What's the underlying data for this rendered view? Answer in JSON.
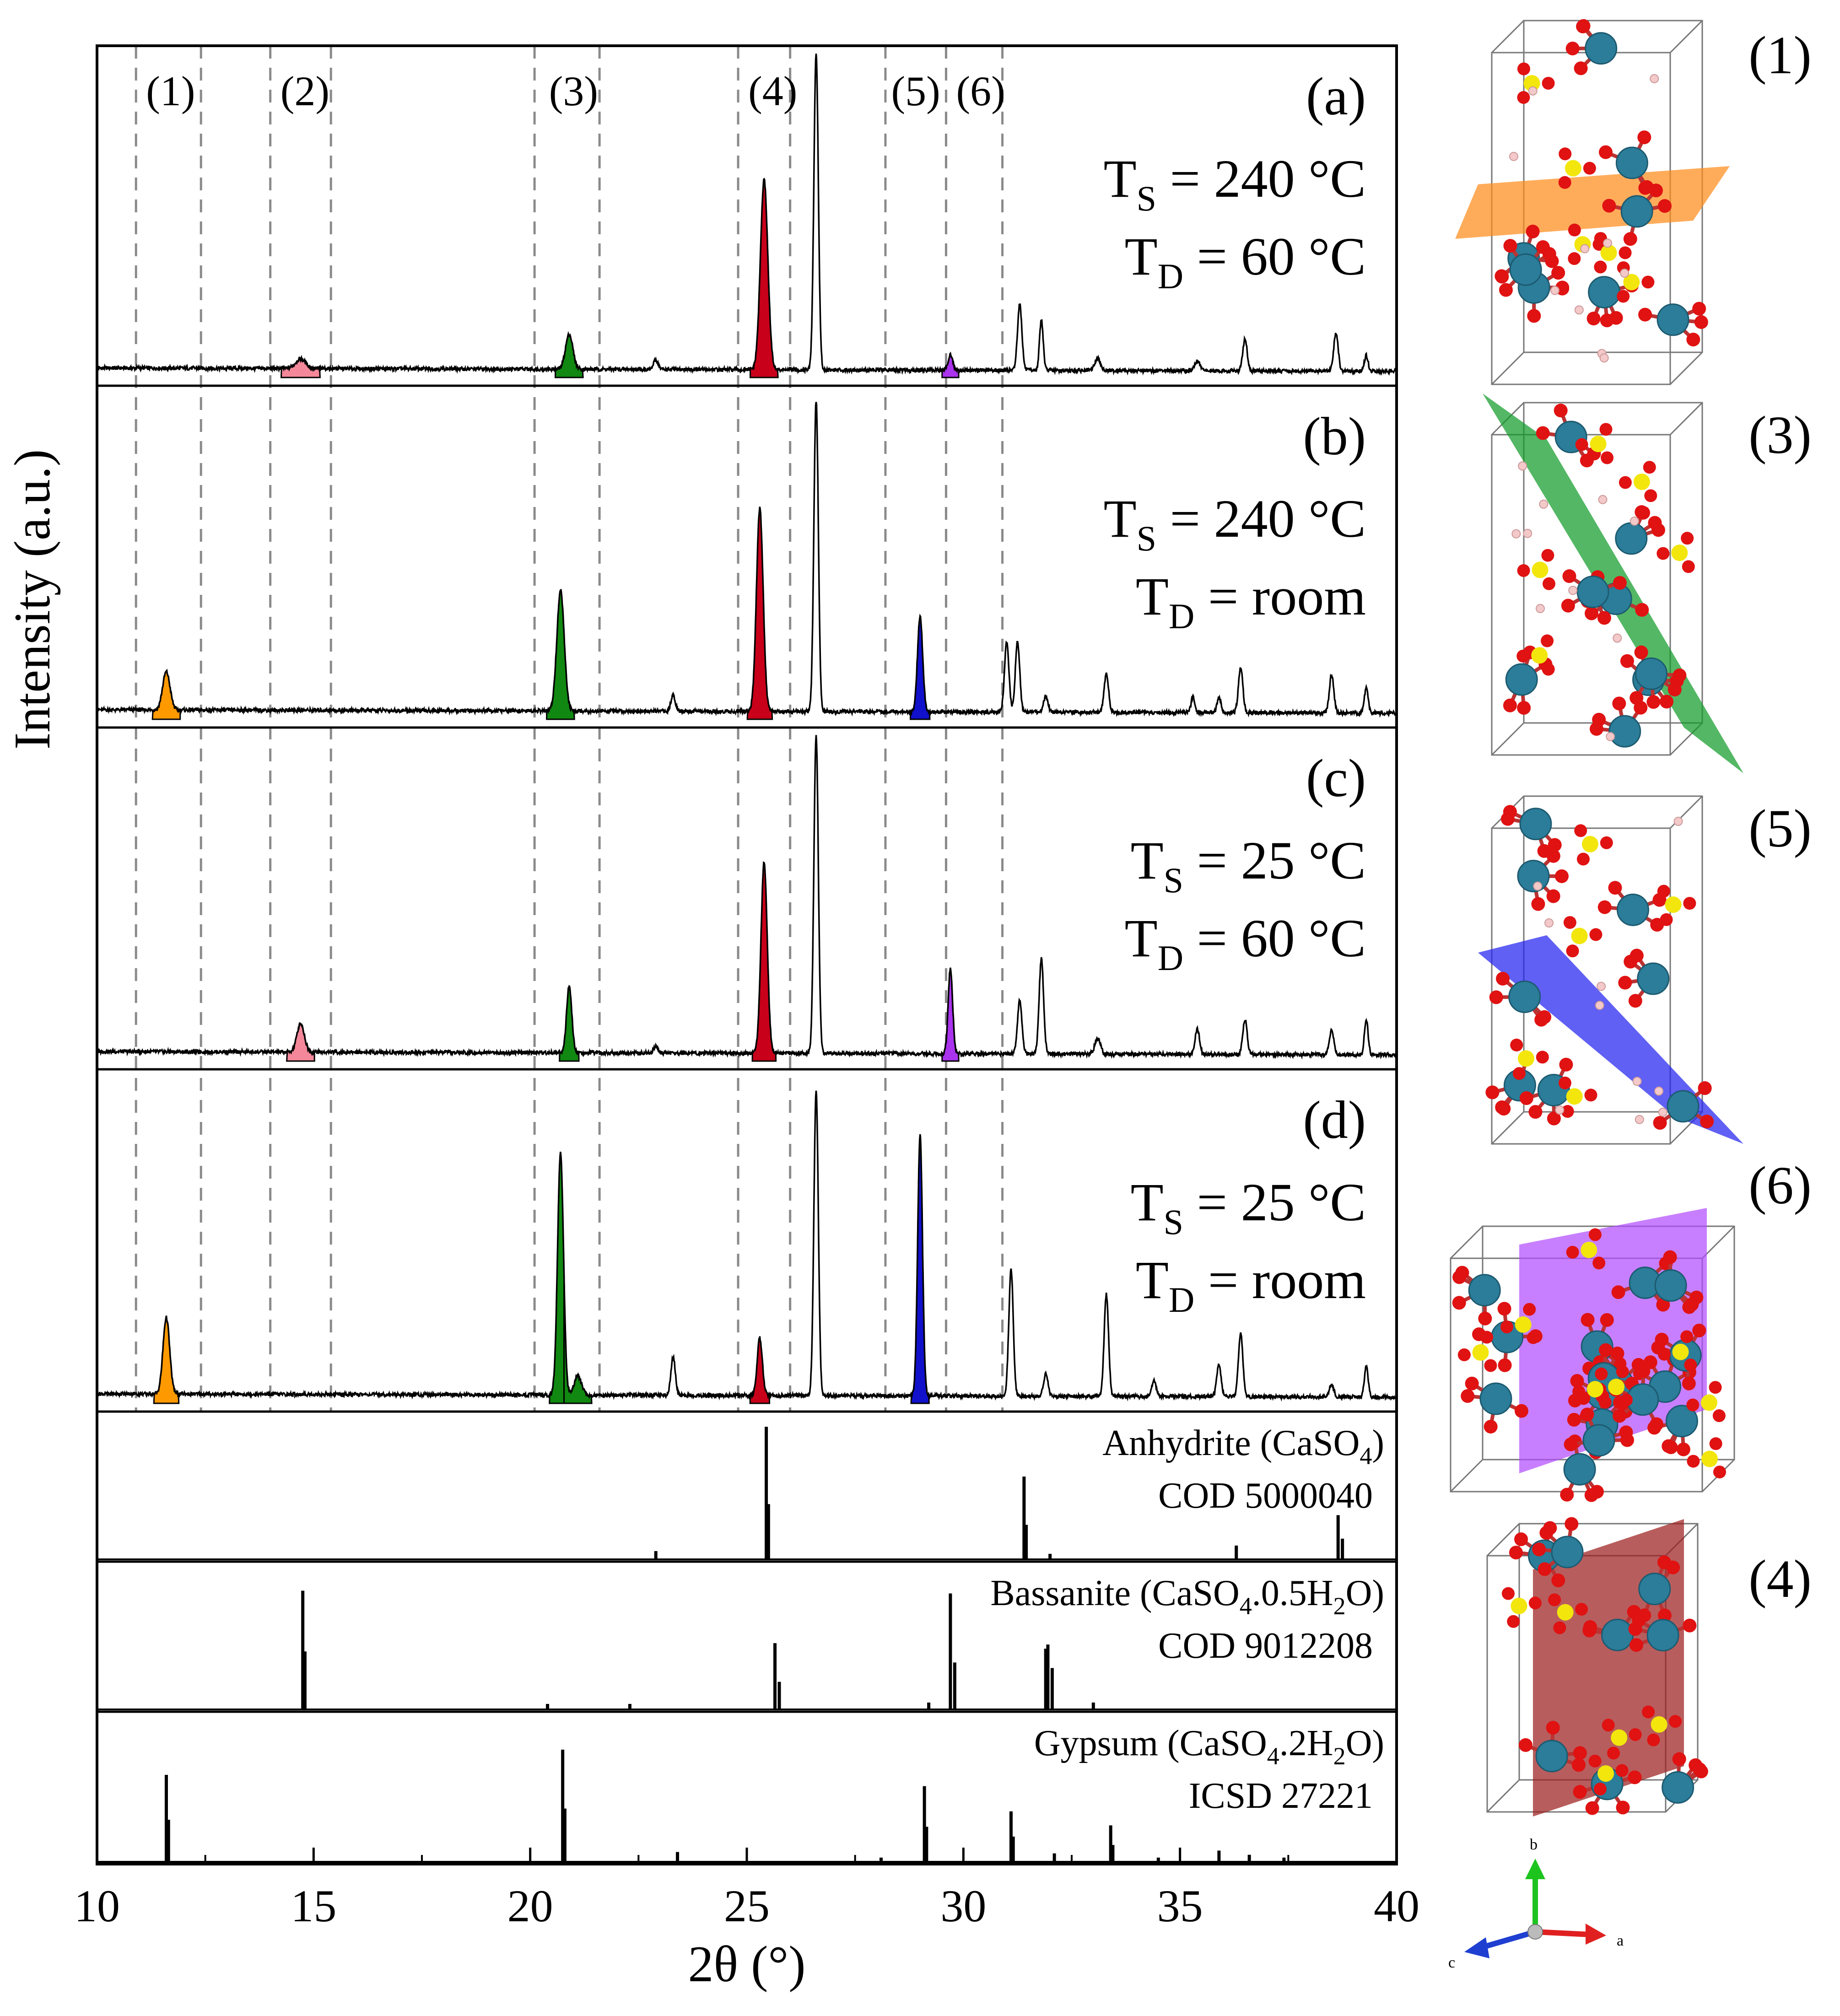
{
  "chart_data": {
    "type": "line",
    "xlabel": "2θ (°)",
    "ylabel": "Intensity (a.u.)",
    "xlim": [
      10,
      40
    ],
    "xticks": [
      "10",
      "15",
      "20",
      "25",
      "30",
      "35",
      "40"
    ],
    "grid": false,
    "peak_regions": [
      {
        "label": "(1)",
        "range": [
          10.9,
          12.4
        ],
        "color": "#ff9900"
      },
      {
        "label": "(2)",
        "range": [
          14.0,
          15.4
        ],
        "color": "#f4889a"
      },
      {
        "label": "(3)",
        "range": [
          20.1,
          21.6
        ],
        "color": "#118811"
      },
      {
        "label": "(4)",
        "range": [
          24.8,
          26.0
        ],
        "color": "#c8001a"
      },
      {
        "label": "(5)",
        "range": [
          28.2,
          29.6
        ],
        "color": "#1111cc"
      },
      {
        "label": "(6)",
        "range": [
          29.6,
          30.9
        ],
        "color": "#aa33ee"
      }
    ],
    "baseline": 0.03,
    "panels": [
      {
        "id": "a",
        "label": "(a)",
        "ts": "240 °C",
        "td": "60 °C",
        "peaks": [
          {
            "x": 14.7,
            "h": 0.03,
            "w": 0.28,
            "region": 1
          },
          {
            "x": 20.9,
            "h": 0.11,
            "w": 0.2,
            "region": 2
          },
          {
            "x": 22.9,
            "h": 0.03,
            "w": 0.12
          },
          {
            "x": 25.4,
            "h": 0.6,
            "w": 0.2,
            "region": 3
          },
          {
            "x": 26.6,
            "h": 1.0,
            "w": 0.12
          },
          {
            "x": 29.7,
            "h": 0.05,
            "w": 0.12,
            "region": 5
          },
          {
            "x": 31.3,
            "h": 0.21,
            "w": 0.12
          },
          {
            "x": 31.8,
            "h": 0.16,
            "w": 0.1
          },
          {
            "x": 33.1,
            "h": 0.04,
            "w": 0.15
          },
          {
            "x": 35.4,
            "h": 0.03,
            "w": 0.15
          },
          {
            "x": 36.5,
            "h": 0.1,
            "w": 0.12
          },
          {
            "x": 38.6,
            "h": 0.12,
            "w": 0.12
          },
          {
            "x": 39.3,
            "h": 0.05,
            "w": 0.1
          }
        ]
      },
      {
        "id": "b",
        "label": "(b)",
        "ts": "240 °C",
        "td": "room",
        "peaks": [
          {
            "x": 11.6,
            "h": 0.12,
            "w": 0.2,
            "region": 0
          },
          {
            "x": 20.7,
            "h": 0.38,
            "w": 0.2,
            "region": 2
          },
          {
            "x": 23.3,
            "h": 0.05,
            "w": 0.12
          },
          {
            "x": 25.3,
            "h": 0.64,
            "w": 0.18,
            "region": 3
          },
          {
            "x": 26.6,
            "h": 0.98,
            "w": 0.12
          },
          {
            "x": 29.0,
            "h": 0.3,
            "w": 0.14,
            "region": 4
          },
          {
            "x": 31.0,
            "h": 0.22,
            "w": 0.12
          },
          {
            "x": 31.25,
            "h": 0.22,
            "w": 0.12
          },
          {
            "x": 31.9,
            "h": 0.05,
            "w": 0.12
          },
          {
            "x": 33.3,
            "h": 0.12,
            "w": 0.12
          },
          {
            "x": 35.3,
            "h": 0.05,
            "w": 0.1
          },
          {
            "x": 35.9,
            "h": 0.05,
            "w": 0.1
          },
          {
            "x": 36.4,
            "h": 0.14,
            "w": 0.12
          },
          {
            "x": 38.5,
            "h": 0.12,
            "w": 0.12
          },
          {
            "x": 39.3,
            "h": 0.08,
            "w": 0.1
          }
        ]
      },
      {
        "id": "c",
        "label": "(c)",
        "ts": "25 °C",
        "td": "60 °C",
        "peaks": [
          {
            "x": 14.7,
            "h": 0.09,
            "w": 0.2,
            "region": 1
          },
          {
            "x": 20.9,
            "h": 0.21,
            "w": 0.14,
            "region": 2
          },
          {
            "x": 22.9,
            "h": 0.02,
            "w": 0.12
          },
          {
            "x": 25.4,
            "h": 0.6,
            "w": 0.17,
            "region": 3
          },
          {
            "x": 26.6,
            "h": 1.0,
            "w": 0.12
          },
          {
            "x": 29.7,
            "h": 0.27,
            "w": 0.12,
            "region": 5
          },
          {
            "x": 31.3,
            "h": 0.17,
            "w": 0.12
          },
          {
            "x": 31.8,
            "h": 0.3,
            "w": 0.12
          },
          {
            "x": 33.1,
            "h": 0.05,
            "w": 0.15
          },
          {
            "x": 35.4,
            "h": 0.08,
            "w": 0.12
          },
          {
            "x": 36.5,
            "h": 0.11,
            "w": 0.12
          },
          {
            "x": 38.5,
            "h": 0.08,
            "w": 0.12
          },
          {
            "x": 39.3,
            "h": 0.11,
            "w": 0.1
          }
        ]
      },
      {
        "id": "d",
        "label": "(d)",
        "ts": "25 °C",
        "td": "room",
        "peaks": [
          {
            "x": 11.6,
            "h": 0.24,
            "w": 0.18,
            "region": 0
          },
          {
            "x": 20.7,
            "h": 0.76,
            "w": 0.16,
            "region": 2
          },
          {
            "x": 21.1,
            "h": 0.06,
            "w": 0.2,
            "region": 2
          },
          {
            "x": 23.3,
            "h": 0.12,
            "w": 0.12
          },
          {
            "x": 25.3,
            "h": 0.18,
            "w": 0.14,
            "region": 3
          },
          {
            "x": 26.6,
            "h": 0.96,
            "w": 0.12
          },
          {
            "x": 29.0,
            "h": 0.82,
            "w": 0.13,
            "region": 4
          },
          {
            "x": 31.1,
            "h": 0.4,
            "w": 0.12
          },
          {
            "x": 31.9,
            "h": 0.07,
            "w": 0.12
          },
          {
            "x": 33.3,
            "h": 0.32,
            "w": 0.12
          },
          {
            "x": 34.4,
            "h": 0.05,
            "w": 0.12
          },
          {
            "x": 35.9,
            "h": 0.1,
            "w": 0.12
          },
          {
            "x": 36.4,
            "h": 0.2,
            "w": 0.12
          },
          {
            "x": 38.5,
            "h": 0.04,
            "w": 0.12
          },
          {
            "x": 39.3,
            "h": 0.1,
            "w": 0.1
          }
        ]
      }
    ],
    "references": [
      {
        "name": "Anhydrite (CaSO",
        "sub": "4",
        "post": ")",
        "code": "COD 5000040",
        "sticks": [
          [
            22.9,
            0.06
          ],
          [
            25.45,
            0.96
          ],
          [
            25.5,
            0.4
          ],
          [
            31.4,
            0.6
          ],
          [
            31.45,
            0.25
          ],
          [
            32.0,
            0.04
          ],
          [
            36.3,
            0.1
          ],
          [
            38.65,
            0.32
          ],
          [
            38.75,
            0.15
          ]
        ]
      },
      {
        "name": "Bassanite (CaSO",
        "sub": "4",
        "mid": ".0.5H",
        "sub2": "2",
        "post": "O)",
        "code": "COD 9012208",
        "sticks": [
          [
            14.75,
            0.86
          ],
          [
            14.8,
            0.42
          ],
          [
            20.4,
            0.04
          ],
          [
            22.3,
            0.04
          ],
          [
            25.65,
            0.48
          ],
          [
            25.75,
            0.2
          ],
          [
            29.2,
            0.05
          ],
          [
            29.7,
            0.84
          ],
          [
            29.8,
            0.34
          ],
          [
            31.9,
            0.44
          ],
          [
            31.95,
            0.47
          ],
          [
            32.05,
            0.3
          ],
          [
            33.0,
            0.05
          ]
        ]
      },
      {
        "name": "Gypsum (CaSO",
        "sub": "4",
        "mid": ".2H",
        "sub2": "2",
        "post": "O)",
        "code": "ICSD 27221",
        "sticks": [
          [
            11.6,
            0.62
          ],
          [
            11.65,
            0.3
          ],
          [
            20.75,
            0.8
          ],
          [
            20.8,
            0.38
          ],
          [
            23.4,
            0.07
          ],
          [
            28.1,
            0.03
          ],
          [
            29.1,
            0.54
          ],
          [
            29.15,
            0.25
          ],
          [
            31.1,
            0.36
          ],
          [
            31.15,
            0.18
          ],
          [
            32.1,
            0.06
          ],
          [
            33.4,
            0.26
          ],
          [
            33.45,
            0.12
          ],
          [
            34.5,
            0.03
          ],
          [
            35.9,
            0.08
          ],
          [
            36.6,
            0.05
          ],
          [
            37.4,
            0.03
          ]
        ]
      }
    ]
  },
  "panel_prefix": {
    "ts": "T",
    "ts_sub": "S",
    "td": "T",
    "td_sub": "D",
    "eq": " = "
  },
  "structures": {
    "labels": [
      "(1)",
      "(3)",
      "(5)",
      "(6)",
      "(4)"
    ],
    "plane_colors": [
      "#ff8c1a",
      "#129b2a",
      "#2323f0",
      "#b34dff",
      "#9c1e1e"
    ],
    "atom_colors": {
      "ca": "#2b7d99",
      "o": "#e01212",
      "s": "#f2e60d",
      "h": "#f3c9c9"
    },
    "axes": {
      "a": "a",
      "b": "b",
      "c": "c"
    }
  }
}
